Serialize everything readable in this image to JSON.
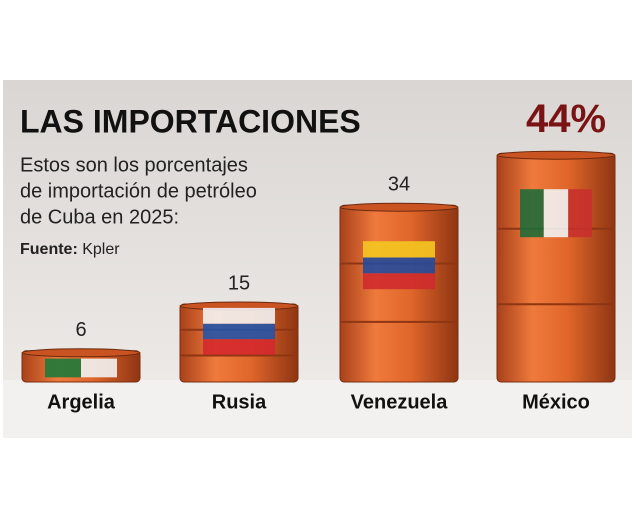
{
  "chart_data": {
    "type": "barrel-bar",
    "title": "LAS IMPORTACIONES",
    "subtitle": [
      "Estos son los porcentajes",
      "de importación de petróleo",
      "de Cuba en 2025:"
    ],
    "source_label": "Fuente:",
    "source": "Kpler",
    "categories": [
      "Argelia",
      "Rusia",
      "Venezuela",
      "México"
    ],
    "values": [
      6,
      15,
      34,
      44
    ],
    "value_labels": [
      "6",
      "15",
      "34",
      "44%"
    ],
    "color": "#e0662a"
  }
}
